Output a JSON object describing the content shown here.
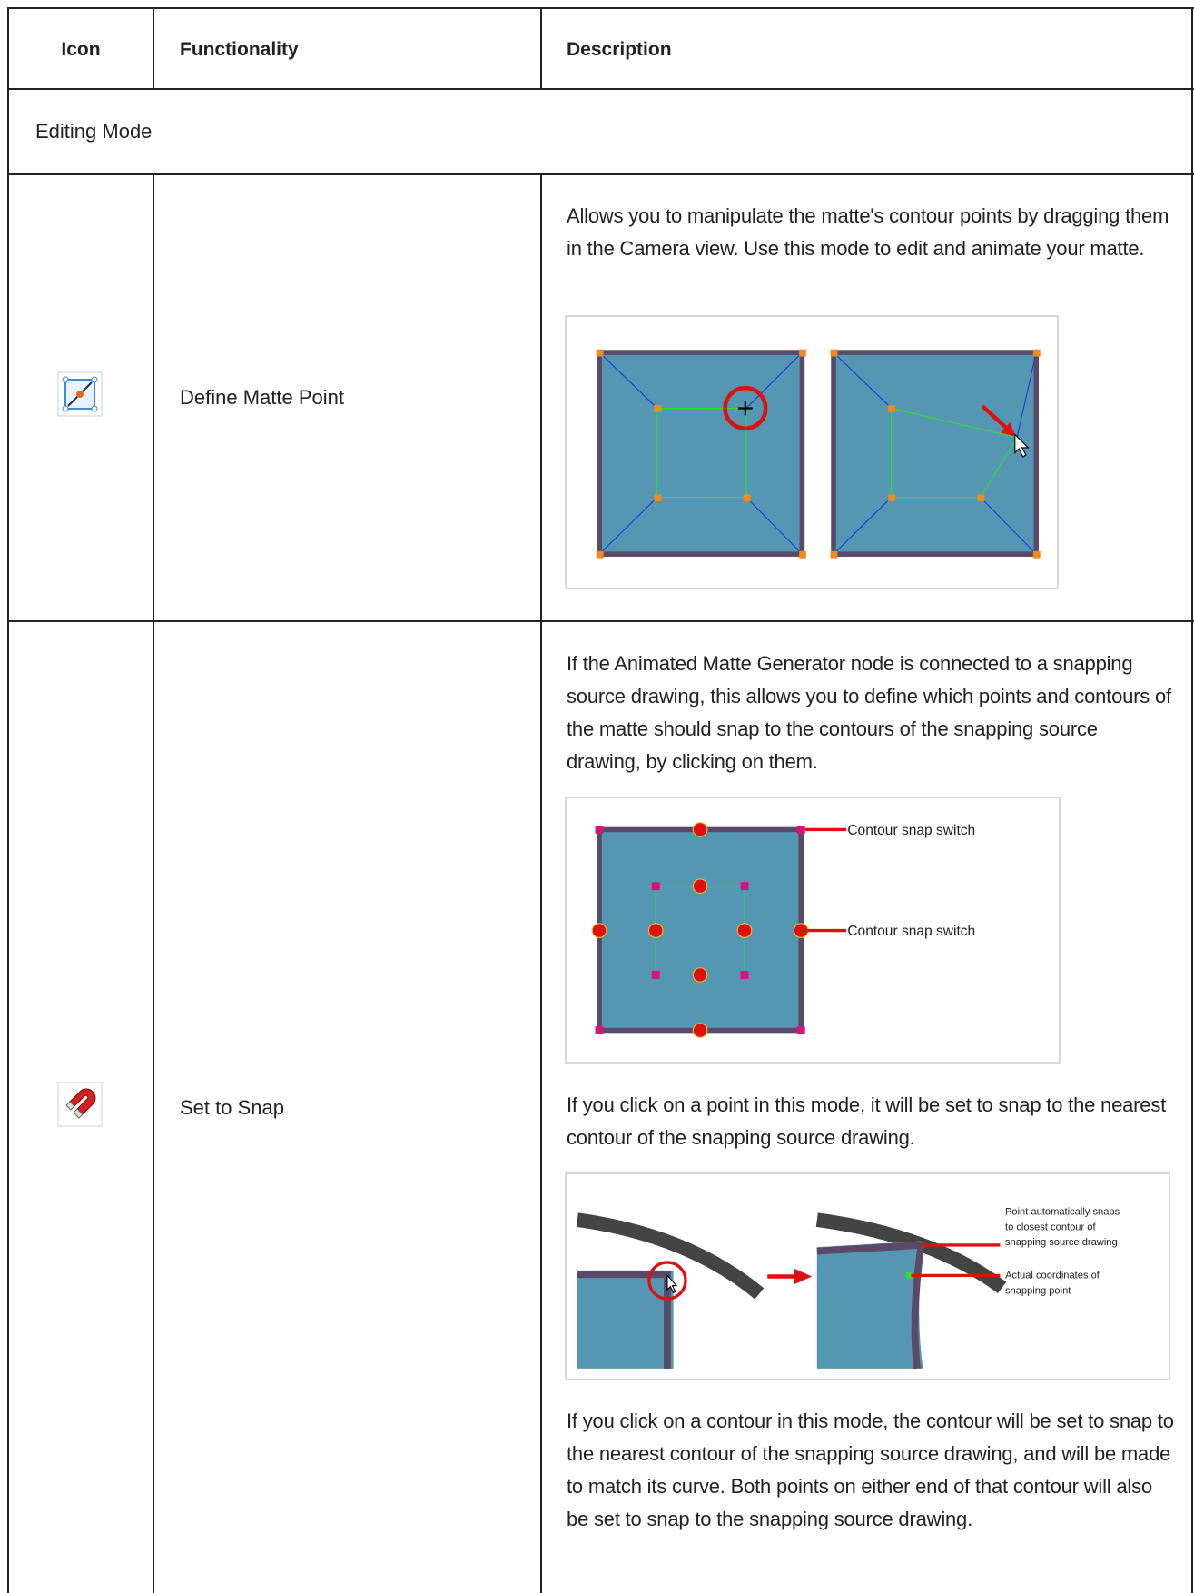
{
  "header": {
    "columns": [
      "Icon",
      "Functionality",
      "Description"
    ]
  },
  "section": "Editing Mode",
  "rows": [
    {
      "functionality": "Define Matte Point",
      "description": [
        "Allows you to manipulate the matte's contour points by dragging them in the Camera view. Use this mode to edit and animate your matte."
      ]
    },
    {
      "functionality": "Set to Snap",
      "description": [
        "If the Animated Matte Generator node is connected to a snapping source drawing, this allows you to define which points and contours of the matte should snap to the contours of the snapping source drawing, by clicking on them.",
        "If you click on a point in this mode, it will be set to snap to the nearest contour of the snapping source drawing.",
        "If you click on a contour in this mode, the contour will be set to snap to the nearest contour of the snapping source drawing, and will be made to match its curve. Both points on either end of that contour will also be set to snap to the snapping source drawing."
      ],
      "figure_labels": {
        "contour_switch_top": "Contour snap switch",
        "contour_switch_mid": "Contour snap switch",
        "auto_snap": [
          "Point automatically snaps",
          "to closest contour of",
          "snapping source drawing"
        ],
        "actual_coords": [
          "Actual coordinates of",
          "snapping point"
        ]
      }
    }
  ]
}
